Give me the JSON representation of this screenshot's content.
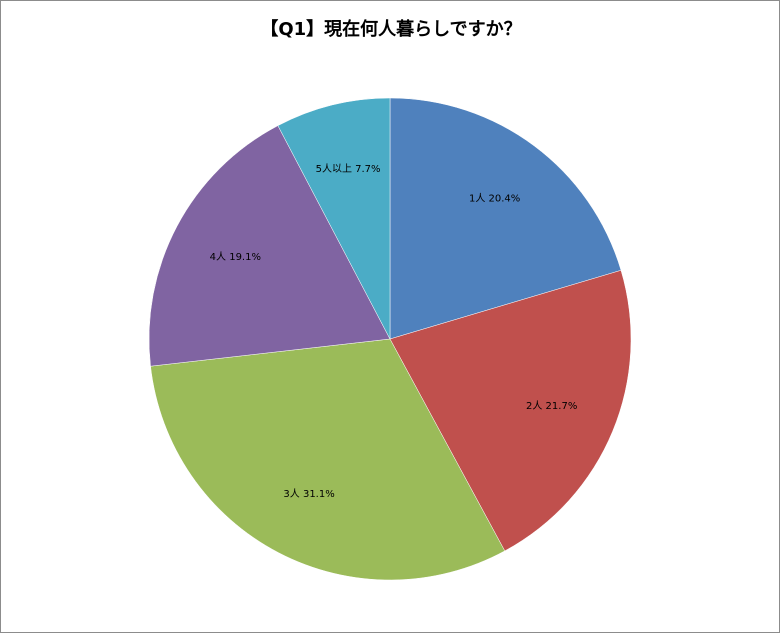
{
  "chart_data": {
    "type": "pie",
    "title": "【Q1】現在何人暮らしですか？",
    "categories": [
      "1人",
      "2人",
      "3人",
      "4人",
      "5人以上"
    ],
    "values": [
      20.4,
      21.7,
      31.1,
      19.1,
      7.7
    ],
    "unit": "%",
    "colors": [
      "#4f81bd",
      "#c0504d",
      "#9bbb59",
      "#8064a2",
      "#4bacc6"
    ],
    "start_angle": "12 o'clock",
    "direction": "clockwise",
    "legend": "none",
    "data_labels": [
      "1人 20.4%",
      "2人 21.7%",
      "3人 31.1%",
      "4人 19.1%",
      "5人以上 7.7%"
    ]
  }
}
